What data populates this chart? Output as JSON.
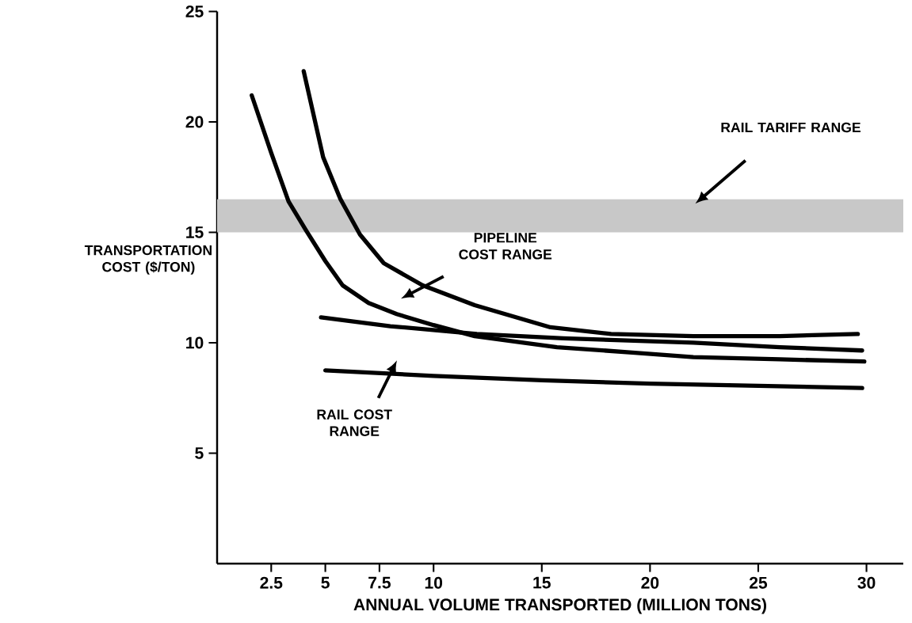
{
  "chart_data": {
    "type": "line",
    "xlabel": "ANNUAL VOLUME TRANSPORTED (MILLION TONS)",
    "ylabel": "TRANSPORTATION COST ($/TON)",
    "xlim": [
      0,
      31.7
    ],
    "ylim": [
      0,
      25
    ],
    "xticks": [
      2.5,
      5,
      7.5,
      10,
      15,
      20,
      25,
      30
    ],
    "yticks": [
      5,
      10,
      15,
      20,
      25
    ],
    "grid": false,
    "marker": "none",
    "line_style": "solid",
    "series": [
      {
        "color": "#000000",
        "x": [
          1.6,
          2.5,
          3.3,
          4.1,
          5.0,
          5.8,
          7.0,
          8.3,
          10,
          11.9,
          15.7,
          19.3,
          22,
          26,
          29.9
        ],
        "values": [
          21.2,
          18.6,
          16.4,
          15.1,
          13.7,
          12.6,
          11.8,
          11.3,
          10.8,
          10.3,
          9.8,
          9.55,
          9.35,
          9.25,
          9.15
        ]
      },
      {
        "color": "#000000",
        "x": [
          4.0,
          4.9,
          5.7,
          6.6,
          7.7,
          9.5,
          11.9,
          15.4,
          18.2,
          22,
          26,
          29.6
        ],
        "values": [
          22.3,
          18.4,
          16.5,
          14.9,
          13.6,
          12.6,
          11.7,
          10.7,
          10.4,
          10.3,
          10.3,
          10.4
        ]
      },
      {
        "color": "#000000",
        "x": [
          4.8,
          8,
          12,
          16,
          22,
          26,
          29.8
        ],
        "values": [
          11.15,
          10.75,
          10.4,
          10.2,
          10.0,
          9.8,
          9.65
        ]
      },
      {
        "color": "#000000",
        "x": [
          5.0,
          10,
          15,
          20,
          25,
          29.8
        ],
        "values": [
          8.75,
          8.5,
          8.3,
          8.15,
          8.05,
          7.95
        ]
      }
    ],
    "bands": [
      {
        "axis": "y",
        "from": 15,
        "to": 16.5,
        "color": "#c8c8c8"
      }
    ],
    "annotations": [
      "RAIL TARIFF RANGE",
      "PIPELINE COST RANGE",
      "RAIL COST RANGE"
    ]
  }
}
